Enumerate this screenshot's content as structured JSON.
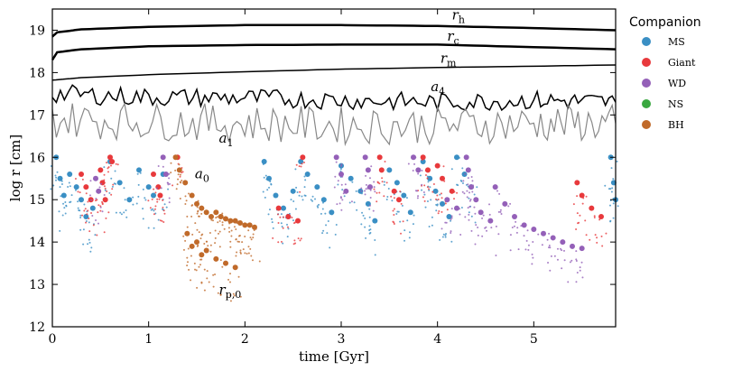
{
  "chart_data": {
    "type": "scatter",
    "xlabel": "time [Gyr]",
    "ylabel": "log r [cm]",
    "xlim": [
      0,
      5.85
    ],
    "ylim": [
      12,
      19.5
    ],
    "x_ticks": [
      0,
      1,
      2,
      3,
      4,
      5
    ],
    "y_ticks": [
      12,
      13,
      14,
      15,
      16,
      17,
      18,
      19
    ],
    "grid": false,
    "legend": {
      "title": "Companion",
      "placement": "outside-right",
      "entries": [
        {
          "name": "MS",
          "color": "#3a8fc4"
        },
        {
          "name": "Giant",
          "color": "#e8393c"
        },
        {
          "name": "WD",
          "color": "#9460b8"
        },
        {
          "name": "NS",
          "color": "#3aa840"
        },
        {
          "name": "BH",
          "color": "#c06a2a"
        }
      ]
    },
    "lines": [
      {
        "label": "r_h",
        "main": "r",
        "sub": "h",
        "color": "#000000",
        "x": [
          0,
          0.05,
          0.3,
          1,
          2,
          3,
          4,
          5,
          5.85
        ],
        "y": [
          18.85,
          18.95,
          19.02,
          19.08,
          19.12,
          19.12,
          19.1,
          19.05,
          19.0
        ]
      },
      {
        "label": "r_c",
        "main": "r",
        "sub": "c",
        "color": "#000000",
        "x": [
          0,
          0.05,
          0.3,
          1,
          2,
          3,
          4,
          5,
          5.85
        ],
        "y": [
          18.3,
          18.48,
          18.55,
          18.62,
          18.65,
          18.66,
          18.66,
          18.6,
          18.55
        ]
      },
      {
        "label": "r_m",
        "main": "r",
        "sub": "m",
        "color": "#000000",
        "x": [
          0,
          0.3,
          1,
          2,
          3,
          4,
          5,
          5.85
        ],
        "y": [
          17.82,
          17.88,
          17.95,
          18.02,
          18.08,
          18.12,
          18.15,
          18.18
        ]
      },
      {
        "label": "a_4",
        "main": "a",
        "sub": "4",
        "color": "#000000",
        "x": [
          0,
          1,
          2,
          3,
          4,
          5,
          5.85
        ],
        "y": [
          17.5,
          17.42,
          17.4,
          17.35,
          17.3,
          17.35,
          17.3
        ]
      },
      {
        "label": "a_1",
        "main": "a",
        "sub": "1",
        "color": "#888888",
        "x": [
          0,
          1,
          2,
          3,
          4,
          5,
          5.85
        ],
        "y": [
          16.9,
          16.85,
          16.8,
          16.75,
          16.75,
          16.8,
          16.8
        ]
      }
    ],
    "annotations": [
      {
        "main": "r",
        "sub": "h",
        "x": 4.15,
        "y": 19.25
      },
      {
        "main": "r",
        "sub": "c",
        "x": 4.1,
        "y": 18.75
      },
      {
        "main": "r",
        "sub": "m",
        "x": 4.03,
        "y": 18.23
      },
      {
        "main": "a",
        "sub": "4",
        "x": 3.93,
        "y": 17.56
      },
      {
        "main": "a",
        "sub": "1",
        "x": 1.73,
        "y": 16.35
      },
      {
        "main": "a",
        "sub": "0",
        "x": 1.48,
        "y": 15.5
      },
      {
        "main": "r",
        "sub": "p,0",
        "x": 1.73,
        "y": 12.77
      }
    ],
    "series": [
      {
        "name": "MS",
        "color": "#3a8fc4",
        "points": [
          [
            0.04,
            16.0
          ],
          [
            0.08,
            15.5
          ],
          [
            0.12,
            15.1
          ],
          [
            0.18,
            15.6
          ],
          [
            0.25,
            15.3
          ],
          [
            0.3,
            15.0
          ],
          [
            0.35,
            14.6
          ],
          [
            0.42,
            14.8
          ],
          [
            0.6,
            15.9
          ],
          [
            0.7,
            15.4
          ],
          [
            0.8,
            15.0
          ],
          [
            0.9,
            15.7
          ],
          [
            1.0,
            15.3
          ],
          [
            1.05,
            15.1
          ],
          [
            1.15,
            15.6
          ],
          [
            2.2,
            15.9
          ],
          [
            2.25,
            15.5
          ],
          [
            2.32,
            15.1
          ],
          [
            2.4,
            14.8
          ],
          [
            2.45,
            14.6
          ],
          [
            2.5,
            15.2
          ],
          [
            2.58,
            15.9
          ],
          [
            2.65,
            15.6
          ],
          [
            2.75,
            15.3
          ],
          [
            2.82,
            15.0
          ],
          [
            2.9,
            14.7
          ],
          [
            3.0,
            15.8
          ],
          [
            3.1,
            15.5
          ],
          [
            3.2,
            15.2
          ],
          [
            3.28,
            14.9
          ],
          [
            3.35,
            14.5
          ],
          [
            3.5,
            15.7
          ],
          [
            3.58,
            15.4
          ],
          [
            3.65,
            15.1
          ],
          [
            3.72,
            14.7
          ],
          [
            3.85,
            15.9
          ],
          [
            3.92,
            15.5
          ],
          [
            3.98,
            15.2
          ],
          [
            4.05,
            14.9
          ],
          [
            4.12,
            14.6
          ],
          [
            4.2,
            16.0
          ],
          [
            4.28,
            15.6
          ],
          [
            4.35,
            15.3
          ],
          [
            5.8,
            16.0
          ],
          [
            5.83,
            15.4
          ],
          [
            5.85,
            15.0
          ]
        ]
      },
      {
        "name": "Giant",
        "color": "#e8393c",
        "points": [
          [
            0.3,
            15.6
          ],
          [
            0.35,
            15.3
          ],
          [
            0.4,
            15.0
          ],
          [
            0.5,
            15.7
          ],
          [
            0.52,
            15.4
          ],
          [
            0.55,
            15.0
          ],
          [
            0.6,
            16.0
          ],
          [
            0.62,
            15.9
          ],
          [
            1.05,
            15.6
          ],
          [
            1.1,
            15.3
          ],
          [
            1.12,
            15.1
          ],
          [
            1.3,
            16.0
          ],
          [
            2.35,
            14.8
          ],
          [
            2.45,
            14.6
          ],
          [
            2.55,
            14.5
          ],
          [
            2.6,
            16.0
          ],
          [
            3.4,
            16.0
          ],
          [
            3.42,
            15.7
          ],
          [
            3.55,
            15.2
          ],
          [
            3.6,
            15.0
          ],
          [
            3.85,
            16.0
          ],
          [
            3.9,
            15.7
          ],
          [
            4.0,
            15.8
          ],
          [
            4.05,
            15.5
          ],
          [
            4.15,
            15.2
          ],
          [
            5.45,
            15.4
          ],
          [
            5.5,
            15.1
          ],
          [
            5.6,
            14.8
          ],
          [
            5.7,
            14.6
          ]
        ]
      },
      {
        "name": "WD",
        "color": "#9460b8",
        "points": [
          [
            0.45,
            15.5
          ],
          [
            0.48,
            15.2
          ],
          [
            1.15,
            16.0
          ],
          [
            1.18,
            15.6
          ],
          [
            2.95,
            16.0
          ],
          [
            3.0,
            15.6
          ],
          [
            3.05,
            15.2
          ],
          [
            3.25,
            16.0
          ],
          [
            3.28,
            15.7
          ],
          [
            3.3,
            15.3
          ],
          [
            3.75,
            16.0
          ],
          [
            3.8,
            15.7
          ],
          [
            4.1,
            15.0
          ],
          [
            4.2,
            14.8
          ],
          [
            4.3,
            16.0
          ],
          [
            4.32,
            15.7
          ],
          [
            4.35,
            15.3
          ],
          [
            4.4,
            15.0
          ],
          [
            4.45,
            14.7
          ],
          [
            4.55,
            14.5
          ],
          [
            4.6,
            15.3
          ],
          [
            4.7,
            14.9
          ],
          [
            4.8,
            14.6
          ],
          [
            4.9,
            14.4
          ],
          [
            5.0,
            14.3
          ],
          [
            5.1,
            14.2
          ],
          [
            5.2,
            14.1
          ],
          [
            5.3,
            14.0
          ],
          [
            5.4,
            13.9
          ],
          [
            5.5,
            13.85
          ]
        ]
      },
      {
        "name": "BH",
        "color": "#c06a2a",
        "points": [
          [
            1.28,
            16.0
          ],
          [
            1.32,
            15.7
          ],
          [
            1.38,
            15.4
          ],
          [
            1.45,
            15.1
          ],
          [
            1.5,
            14.9
          ],
          [
            1.55,
            14.8
          ],
          [
            1.6,
            14.7
          ],
          [
            1.65,
            14.6
          ],
          [
            1.7,
            14.7
          ],
          [
            1.75,
            14.6
          ],
          [
            1.8,
            14.55
          ],
          [
            1.85,
            14.5
          ],
          [
            1.9,
            14.5
          ],
          [
            1.95,
            14.45
          ],
          [
            2.0,
            14.4
          ],
          [
            2.05,
            14.4
          ],
          [
            2.1,
            14.35
          ],
          [
            1.4,
            14.2
          ],
          [
            1.5,
            14.0
          ],
          [
            1.6,
            13.8
          ],
          [
            1.7,
            13.6
          ],
          [
            1.8,
            13.5
          ],
          [
            1.9,
            13.4
          ],
          [
            1.45,
            13.9
          ],
          [
            1.55,
            13.7
          ]
        ]
      }
    ]
  }
}
